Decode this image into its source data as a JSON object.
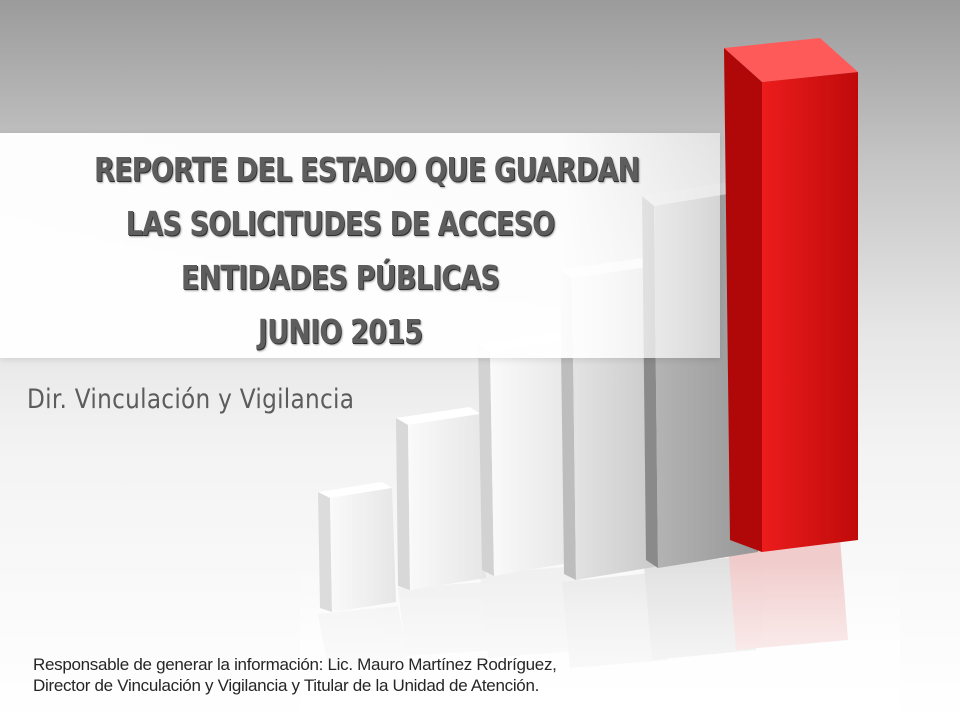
{
  "title_lines": [
    "REPORTE DEL ESTADO QUE GUARDAN",
    "LAS SOLICITUDES  DE ACCESO",
    "ENTIDADES  PÚBLICAS",
    "JUNIO 2015"
  ],
  "subtitle": "Dir. Vinculación  y Vigilancia",
  "footer": "Responsable de generar la información: Lic. Mauro Martínez Rodríguez, Director de Vinculación y Vigilancia y Titular de la Unidad de Atención.",
  "graphic": {
    "description_icon": "bar-chart-3d-icon",
    "bar_colors": [
      "#f4f4f4",
      "#f1f1f1",
      "#eeeeee",
      "#d9d9d9",
      "#a9a9a9",
      "#e01818"
    ]
  }
}
